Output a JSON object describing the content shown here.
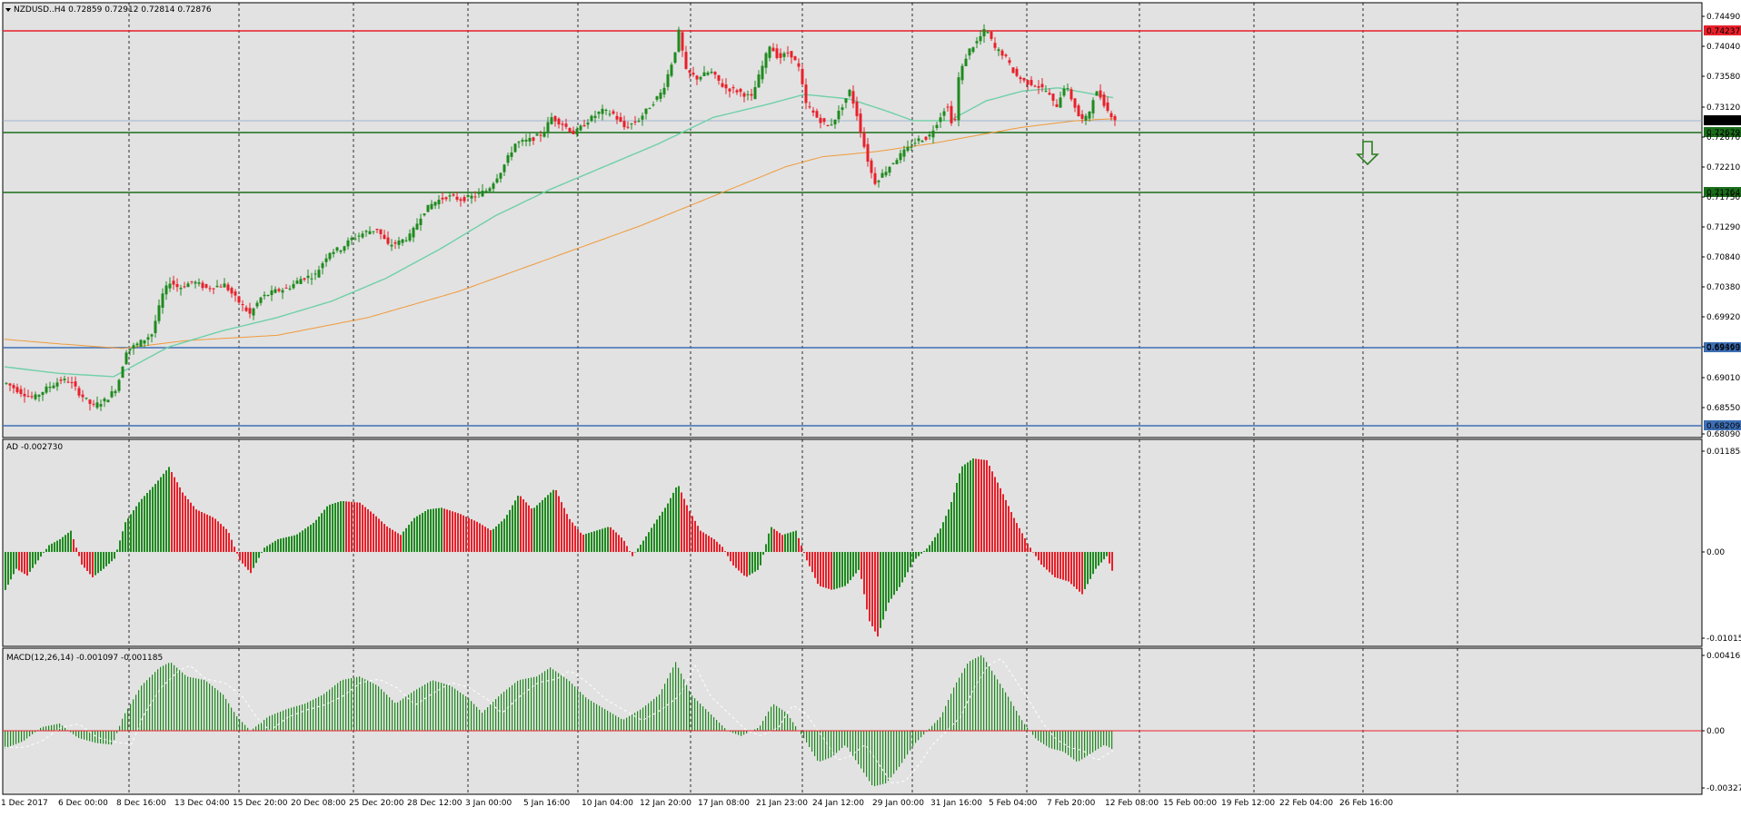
{
  "symbol_header": "NZDUSD..H4  0.72859 0.72912 0.72814 0.72876",
  "ad_header": "AD -0.002730",
  "macd_header": "MACD(12,26,14) -0.001097 -0.001185",
  "chart_data": [
    {
      "type": "candlestick",
      "title": "NZDUSD..H4",
      "ohlc_last": {
        "open": 0.72859,
        "high": 0.72912,
        "low": 0.72814,
        "close": 0.72876
      },
      "y_ticks": [
        "0.74490",
        "0.74040",
        "0.73580",
        "0.73120",
        "0.72670",
        "0.72210",
        "0.71750",
        "0.71290",
        "0.70840",
        "0.70380",
        "0.69920",
        "0.69460",
        "0.69010",
        "0.68550",
        "0.68090"
      ],
      "ylim": [
        0.6805,
        0.7455
      ],
      "x_labels": [
        "1 Dec 2017",
        "6 Dec 00:00",
        "8 Dec 16:00",
        "13 Dec 04:00",
        "15 Dec 20:00",
        "20 Dec 08:00",
        "25 Dec 20:00",
        "28 Dec 12:00",
        "3 Jan 00:00",
        "5 Jan 16:00",
        "10 Jan 04:00",
        "12 Jan 20:00",
        "17 Jan 08:00",
        "21 Jan 23:00",
        "24 Jan 12:00",
        "29 Jan 00:00",
        "31 Jan 16:00",
        "5 Feb 04:00",
        "7 Feb 20:00",
        "12 Feb 08:00",
        "15 Feb 00:00",
        "19 Feb 12:00",
        "22 Feb 04:00",
        "26 Feb 16:00"
      ],
      "price_path": [
        [
          0,
          0.6885
        ],
        [
          15,
          0.6872
        ],
        [
          30,
          0.6862
        ],
        [
          45,
          0.6878
        ],
        [
          60,
          0.689
        ],
        [
          70,
          0.6888
        ],
        [
          80,
          0.687
        ],
        [
          95,
          0.685
        ],
        [
          110,
          0.686
        ],
        [
          122,
          0.688
        ],
        [
          132,
          0.6935
        ],
        [
          145,
          0.6945
        ],
        [
          160,
          0.696
        ],
        [
          172,
          0.702
        ],
        [
          180,
          0.704
        ],
        [
          190,
          0.703
        ],
        [
          205,
          0.704
        ],
        [
          220,
          0.703
        ],
        [
          240,
          0.7035
        ],
        [
          255,
          0.701
        ],
        [
          268,
          0.699
        ],
        [
          280,
          0.7015
        ],
        [
          295,
          0.7025
        ],
        [
          310,
          0.703
        ],
        [
          325,
          0.7045
        ],
        [
          340,
          0.705
        ],
        [
          355,
          0.7085
        ],
        [
          368,
          0.709
        ],
        [
          380,
          0.7105
        ],
        [
          395,
          0.7115
        ],
        [
          408,
          0.712
        ],
        [
          420,
          0.7095
        ],
        [
          432,
          0.71
        ],
        [
          445,
          0.711
        ],
        [
          458,
          0.7145
        ],
        [
          470,
          0.716
        ],
        [
          485,
          0.717
        ],
        [
          500,
          0.7165
        ],
        [
          515,
          0.717
        ],
        [
          530,
          0.718
        ],
        [
          545,
          0.721
        ],
        [
          560,
          0.725
        ],
        [
          575,
          0.7255
        ],
        [
          590,
          0.7265
        ],
        [
          600,
          0.729
        ],
        [
          612,
          0.728
        ],
        [
          625,
          0.7265
        ],
        [
          640,
          0.7285
        ],
        [
          655,
          0.73
        ],
        [
          668,
          0.7295
        ],
        [
          680,
          0.7275
        ],
        [
          695,
          0.7285
        ],
        [
          710,
          0.731
        ],
        [
          722,
          0.733
        ],
        [
          735,
          0.7385
        ],
        [
          740,
          0.742
        ],
        [
          748,
          0.736
        ],
        [
          760,
          0.735
        ],
        [
          775,
          0.736
        ],
        [
          790,
          0.7335
        ],
        [
          805,
          0.733
        ],
        [
          820,
          0.732
        ],
        [
          830,
          0.736
        ],
        [
          840,
          0.74
        ],
        [
          850,
          0.738
        ],
        [
          862,
          0.739
        ],
        [
          872,
          0.7365
        ],
        [
          880,
          0.731
        ],
        [
          892,
          0.729
        ],
        [
          905,
          0.7275
        ],
        [
          915,
          0.7295
        ],
        [
          928,
          0.733
        ],
        [
          935,
          0.73
        ],
        [
          945,
          0.724
        ],
        [
          955,
          0.719
        ],
        [
          965,
          0.7205
        ],
        [
          978,
          0.7225
        ],
        [
          990,
          0.724
        ],
        [
          1002,
          0.7255
        ],
        [
          1015,
          0.726
        ],
        [
          1025,
          0.7285
        ],
        [
          1035,
          0.731
        ],
        [
          1043,
          0.727
        ],
        [
          1048,
          0.735
        ],
        [
          1058,
          0.739
        ],
        [
          1068,
          0.7405
        ],
        [
          1078,
          0.7425
        ],
        [
          1088,
          0.7395
        ],
        [
          1098,
          0.7385
        ],
        [
          1110,
          0.7355
        ],
        [
          1120,
          0.7345
        ],
        [
          1132,
          0.734
        ],
        [
          1145,
          0.733
        ],
        [
          1155,
          0.7305
        ],
        [
          1165,
          0.734
        ],
        [
          1175,
          0.731
        ],
        [
          1182,
          0.7285
        ],
        [
          1190,
          0.729
        ],
        [
          1198,
          0.733
        ],
        [
          1205,
          0.732
        ],
        [
          1212,
          0.73
        ],
        [
          1220,
          0.72876
        ]
      ],
      "ma_fast": [
        [
          0,
          0.691
        ],
        [
          60,
          0.69
        ],
        [
          120,
          0.6895
        ],
        [
          180,
          0.694
        ],
        [
          240,
          0.6965
        ],
        [
          300,
          0.6985
        ],
        [
          360,
          0.701
        ],
        [
          420,
          0.7045
        ],
        [
          480,
          0.709
        ],
        [
          540,
          0.714
        ],
        [
          600,
          0.718
        ],
        [
          660,
          0.7215
        ],
        [
          720,
          0.725
        ],
        [
          780,
          0.729
        ],
        [
          840,
          0.731
        ],
        [
          880,
          0.7325
        ],
        [
          930,
          0.7318
        ],
        [
          970,
          0.73
        ],
        [
          1000,
          0.7285
        ],
        [
          1040,
          0.7285
        ],
        [
          1080,
          0.7315
        ],
        [
          1120,
          0.733
        ],
        [
          1160,
          0.7335
        ],
        [
          1220,
          0.732
        ]
      ],
      "ma_slow": [
        [
          0,
          0.6952
        ],
        [
          60,
          0.6945
        ],
        [
          130,
          0.6938
        ],
        [
          200,
          0.695
        ],
        [
          300,
          0.6958
        ],
        [
          400,
          0.6985
        ],
        [
          500,
          0.7025
        ],
        [
          600,
          0.7075
        ],
        [
          700,
          0.7125
        ],
        [
          780,
          0.717
        ],
        [
          860,
          0.7215
        ],
        [
          900,
          0.723
        ],
        [
          960,
          0.7238
        ],
        [
          1020,
          0.725
        ],
        [
          1060,
          0.726
        ],
        [
          1120,
          0.7275
        ],
        [
          1180,
          0.7285
        ],
        [
          1220,
          0.7288
        ]
      ],
      "horizontal_levels": [
        {
          "value": 0.74237,
          "label": "0.74237",
          "color": "#e8202a",
          "style": "solid"
        },
        {
          "value": 0.72876,
          "label": "0.72876",
          "color": "#8aa8c8",
          "style": "thin",
          "label_color": "#000000"
        },
        {
          "value": 0.72679,
          "label": "0.72679",
          "color": "#1a6e1a",
          "style": "solid"
        },
        {
          "value": 0.71764,
          "label": "0.71764",
          "color": "#1a6e1a",
          "style": "solid"
        },
        {
          "value": 0.69393,
          "label": "0.69393",
          "color": "#3d6fb5",
          "style": "solid"
        },
        {
          "value": 0.68209,
          "label": "0.68209",
          "color": "#3d6fb5",
          "style": "solid"
        }
      ],
      "annotation": {
        "type": "arrow-down",
        "color": "#2e7d22"
      }
    },
    {
      "type": "bar",
      "title": "AD",
      "value": -0.00273,
      "y_ticks": [
        "0.011854",
        "0.00",
        "-0.010152"
      ],
      "ylim": [
        -0.0102,
        0.01186
      ],
      "profile": [
        [
          0,
          -0.0045
        ],
        [
          12,
          -0.002
        ],
        [
          24,
          -0.0028
        ],
        [
          36,
          -0.001
        ],
        [
          48,
          0.0008
        ],
        [
          60,
          0.0015
        ],
        [
          72,
          0.0025
        ],
        [
          84,
          -0.0015
        ],
        [
          96,
          -0.003
        ],
        [
          108,
          -0.002
        ],
        [
          120,
          -0.0008
        ],
        [
          132,
          0.0035
        ],
        [
          148,
          0.006
        ],
        [
          165,
          0.008
        ],
        [
          180,
          0.01
        ],
        [
          195,
          0.007
        ],
        [
          210,
          0.005
        ],
        [
          230,
          0.004
        ],
        [
          245,
          0.0025
        ],
        [
          258,
          -0.001
        ],
        [
          270,
          -0.0025
        ],
        [
          285,
          0.0005
        ],
        [
          300,
          0.0015
        ],
        [
          320,
          0.002
        ],
        [
          340,
          0.0035
        ],
        [
          355,
          0.0055
        ],
        [
          370,
          0.006
        ],
        [
          390,
          0.0058
        ],
        [
          405,
          0.0045
        ],
        [
          420,
          0.003
        ],
        [
          435,
          0.002
        ],
        [
          450,
          0.004
        ],
        [
          465,
          0.005
        ],
        [
          480,
          0.0052
        ],
        [
          500,
          0.0045
        ],
        [
          520,
          0.0035
        ],
        [
          535,
          0.0025
        ],
        [
          550,
          0.004
        ],
        [
          565,
          0.0068
        ],
        [
          580,
          0.005
        ],
        [
          595,
          0.0065
        ],
        [
          605,
          0.0075
        ],
        [
          620,
          0.004
        ],
        [
          635,
          0.002
        ],
        [
          650,
          0.0025
        ],
        [
          665,
          0.003
        ],
        [
          680,
          0.0015
        ],
        [
          690,
          -0.0005
        ],
        [
          700,
          0.001
        ],
        [
          715,
          0.0035
        ],
        [
          728,
          0.0055
        ],
        [
          740,
          0.008
        ],
        [
          752,
          0.005
        ],
        [
          765,
          0.0025
        ],
        [
          780,
          0.0015
        ],
        [
          790,
          0.0005
        ],
        [
          800,
          -0.0015
        ],
        [
          815,
          -0.003
        ],
        [
          830,
          -0.002
        ],
        [
          842,
          0.003
        ],
        [
          855,
          0.002
        ],
        [
          870,
          0.0025
        ],
        [
          882,
          -0.001
        ],
        [
          895,
          -0.004
        ],
        [
          910,
          -0.0045
        ],
        [
          925,
          -0.004
        ],
        [
          940,
          -0.002
        ],
        [
          950,
          -0.008
        ],
        [
          960,
          -0.01
        ],
        [
          972,
          -0.006
        ],
        [
          985,
          -0.004
        ],
        [
          1000,
          -0.001
        ],
        [
          1015,
          0.0005
        ],
        [
          1028,
          0.0025
        ],
        [
          1040,
          0.0055
        ],
        [
          1052,
          0.01
        ],
        [
          1065,
          0.011
        ],
        [
          1080,
          0.0108
        ],
        [
          1095,
          0.0075
        ],
        [
          1110,
          0.004
        ],
        [
          1125,
          0.001
        ],
        [
          1140,
          -0.0015
        ],
        [
          1155,
          -0.003
        ],
        [
          1170,
          -0.0035
        ],
        [
          1185,
          -0.005
        ],
        [
          1200,
          -0.002
        ],
        [
          1212,
          -0.0005
        ],
        [
          1220,
          -0.0028
        ]
      ]
    },
    {
      "type": "bar",
      "title": "MACD(12,26,14)",
      "main": -0.001097,
      "signal": -0.001185,
      "y_ticks": [
        "0.004165",
        "0.00",
        "-0.003274"
      ],
      "ylim": [
        -0.003274,
        0.004165
      ],
      "profile": [
        [
          0,
          -0.001
        ],
        [
          20,
          -0.0006
        ],
        [
          40,
          0.0002
        ],
        [
          60,
          0.0004
        ],
        [
          80,
          -0.0004
        ],
        [
          100,
          -0.0007
        ],
        [
          118,
          -0.0008
        ],
        [
          130,
          0.0008
        ],
        [
          150,
          0.0025
        ],
        [
          170,
          0.0035
        ],
        [
          182,
          0.0038
        ],
        [
          200,
          0.003
        ],
        [
          220,
          0.0028
        ],
        [
          240,
          0.002
        ],
        [
          255,
          0.0008
        ],
        [
          270,
          0.0
        ],
        [
          290,
          0.0008
        ],
        [
          310,
          0.0012
        ],
        [
          330,
          0.0015
        ],
        [
          350,
          0.002
        ],
        [
          370,
          0.0028
        ],
        [
          390,
          0.003
        ],
        [
          410,
          0.0025
        ],
        [
          430,
          0.0015
        ],
        [
          450,
          0.0022
        ],
        [
          470,
          0.0028
        ],
        [
          490,
          0.0025
        ],
        [
          510,
          0.0018
        ],
        [
          525,
          0.001
        ],
        [
          545,
          0.002
        ],
        [
          565,
          0.0028
        ],
        [
          585,
          0.003
        ],
        [
          600,
          0.0035
        ],
        [
          620,
          0.0028
        ],
        [
          640,
          0.0018
        ],
        [
          660,
          0.0012
        ],
        [
          680,
          0.0006
        ],
        [
          700,
          0.0012
        ],
        [
          720,
          0.002
        ],
        [
          738,
          0.0038
        ],
        [
          755,
          0.002
        ],
        [
          775,
          0.001
        ],
        [
          795,
          0.0
        ],
        [
          810,
          -0.0003
        ],
        [
          830,
          0.0002
        ],
        [
          845,
          0.0015
        ],
        [
          860,
          0.001
        ],
        [
          880,
          -0.0005
        ],
        [
          895,
          -0.0018
        ],
        [
          910,
          -0.0015
        ],
        [
          925,
          -0.0008
        ],
        [
          940,
          -0.002
        ],
        [
          955,
          -0.0032
        ],
        [
          970,
          -0.003
        ],
        [
          985,
          -0.002
        ],
        [
          1000,
          -0.0008
        ],
        [
          1015,
          0.0
        ],
        [
          1030,
          0.0008
        ],
        [
          1045,
          0.0025
        ],
        [
          1060,
          0.0038
        ],
        [
          1075,
          0.0042
        ],
        [
          1090,
          0.003
        ],
        [
          1105,
          0.0018
        ],
        [
          1120,
          0.0005
        ],
        [
          1135,
          -0.0005
        ],
        [
          1150,
          -0.001
        ],
        [
          1165,
          -0.0012
        ],
        [
          1180,
          -0.0018
        ],
        [
          1195,
          -0.0013
        ],
        [
          1210,
          -0.0008
        ],
        [
          1220,
          -0.0011
        ]
      ]
    }
  ]
}
